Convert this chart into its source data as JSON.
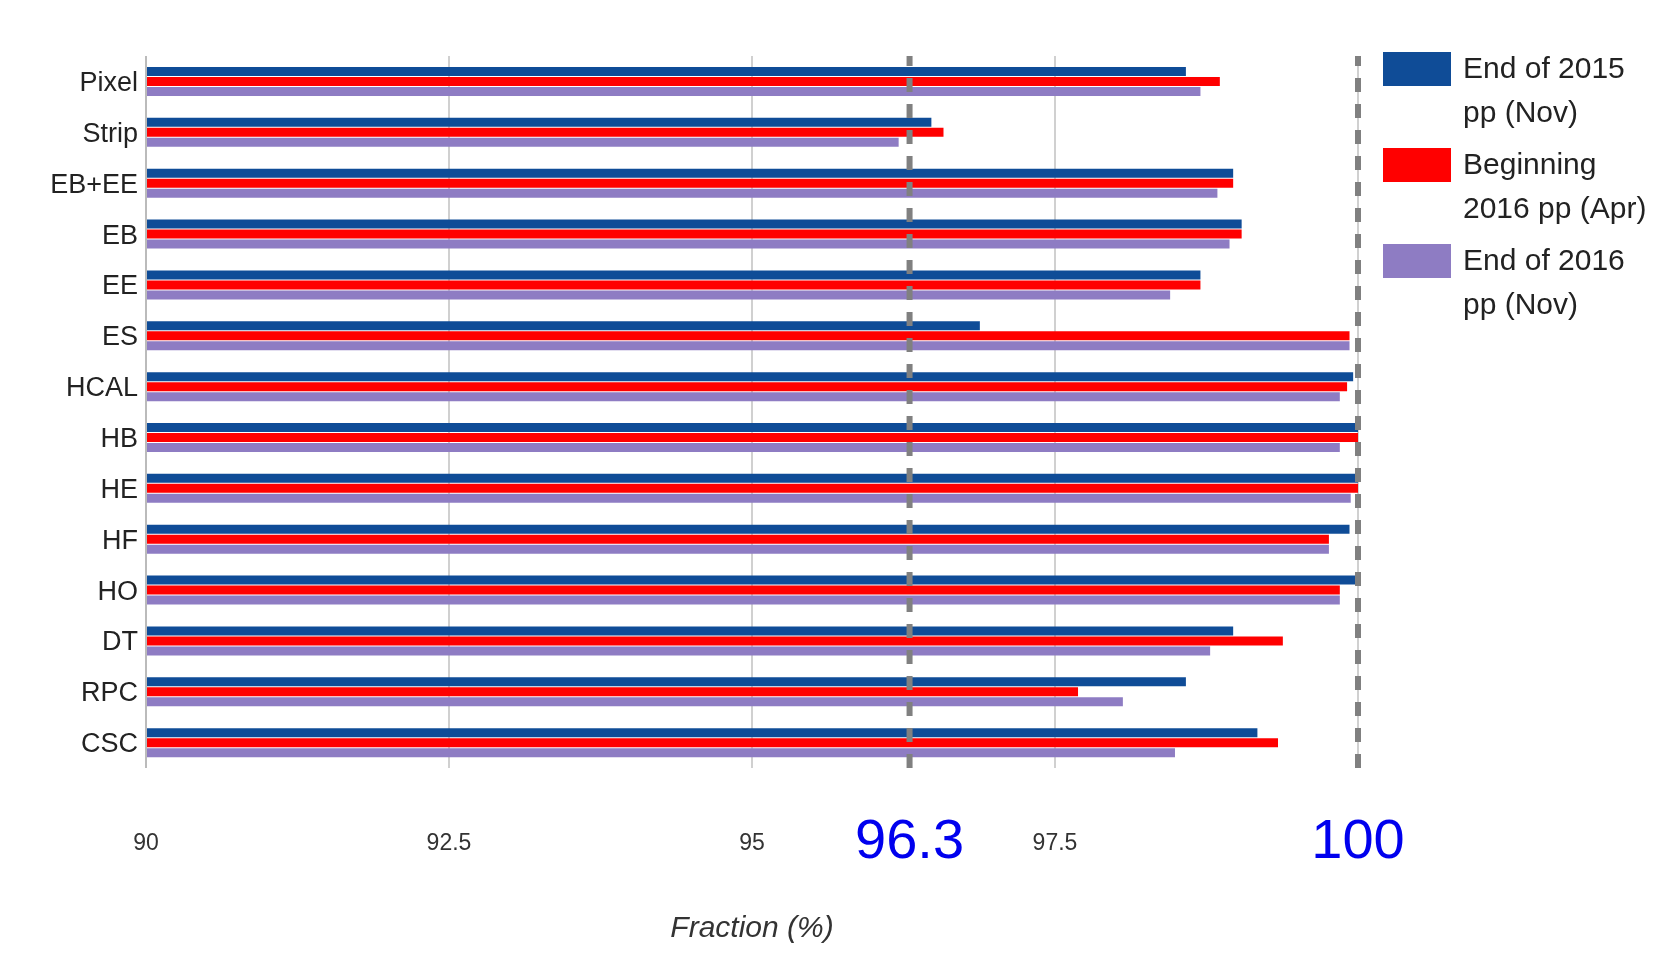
{
  "chart_data": {
    "type": "bar",
    "orientation": "horizontal",
    "xlabel": "Fraction (%)",
    "categories": [
      "Pixel",
      "Strip",
      "EB+EE",
      "EB",
      "EE",
      "ES",
      "HCAL",
      "HB",
      "HE",
      "HF",
      "HO",
      "DT",
      "RPC",
      "CSC"
    ],
    "series": [
      {
        "name": "End of 2015 pp (Nov)",
        "color": "#0f4c97",
        "values": [
          98.58,
          96.48,
          98.97,
          99.04,
          98.7,
          96.88,
          99.96,
          100,
          100,
          99.93,
          100,
          98.97,
          98.58,
          99.17
        ]
      },
      {
        "name": "Beginning 2016 pp (Apr)",
        "color": "#ff0000",
        "values": [
          98.86,
          96.58,
          98.97,
          99.04,
          98.7,
          99.93,
          99.91,
          100,
          100,
          99.76,
          99.85,
          99.38,
          97.69,
          99.34
        ]
      },
      {
        "name": "End of 2016 pp (Nov)",
        "color": "#8e7cc3",
        "values": [
          98.7,
          96.21,
          98.84,
          98.94,
          98.45,
          99.93,
          99.85,
          99.85,
          99.94,
          99.76,
          99.85,
          98.78,
          98.06,
          98.49
        ]
      }
    ],
    "xlim": [
      90,
      100
    ],
    "xticks": [
      90,
      92.5,
      95,
      97.5,
      {
        "value": 100,
        "label": null
      }
    ],
    "grid": "x",
    "legend": "top right",
    "ref_lines": [
      {
        "axis": "x",
        "value": 96.3,
        "label": "96.3",
        "color": "#808080",
        "line_style": "dashed"
      },
      {
        "axis": "x",
        "value": 100,
        "label": "100",
        "color": "#808080",
        "line_style": "dashed"
      }
    ]
  }
}
